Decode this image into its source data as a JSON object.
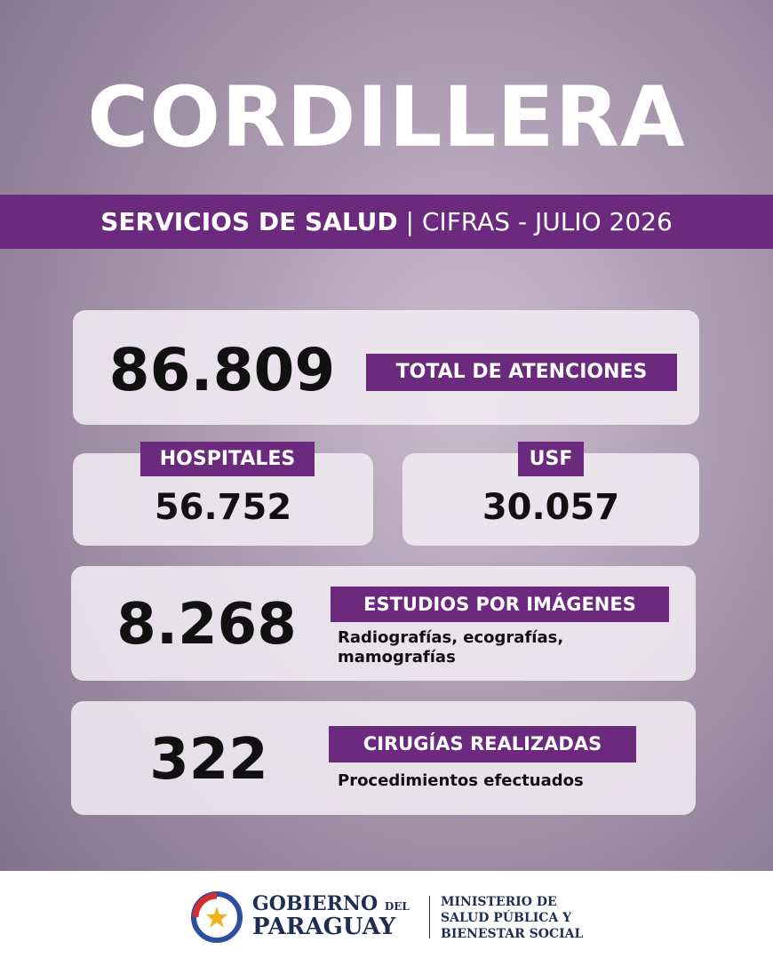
{
  "header": {
    "title": "CORDILLERA",
    "subtitle_left": "SERVICIOS DE SALUD",
    "subtitle_separator": "|",
    "subtitle_right": "CIFRAS - JULIO 2026"
  },
  "cards": {
    "total": {
      "value": "86.809",
      "label": "TOTAL DE ATENCIONES"
    },
    "hospitales": {
      "label": "HOSPITALES",
      "value": "56.752"
    },
    "usf": {
      "label": "USF",
      "value": "30.057"
    },
    "estudios": {
      "value": "8.268",
      "label": "ESTUDIOS POR IMÁGENES",
      "description_line1": "Radiografías, ecografías,",
      "description_line2": "mamografías"
    },
    "cirugias": {
      "value": "322",
      "label": "CIRUGÍAS REALIZADAS",
      "description": "Procedimientos efectuados"
    }
  },
  "footer": {
    "gov_line1": "GOBIERNO",
    "gov_del": "DEL",
    "gov_line2": "PARAGUAY",
    "ministry_line1": "MINISTERIO DE",
    "ministry_line2": "SALUD PÚBLICA Y",
    "ministry_line3": "BIENESTAR SOCIAL"
  }
}
